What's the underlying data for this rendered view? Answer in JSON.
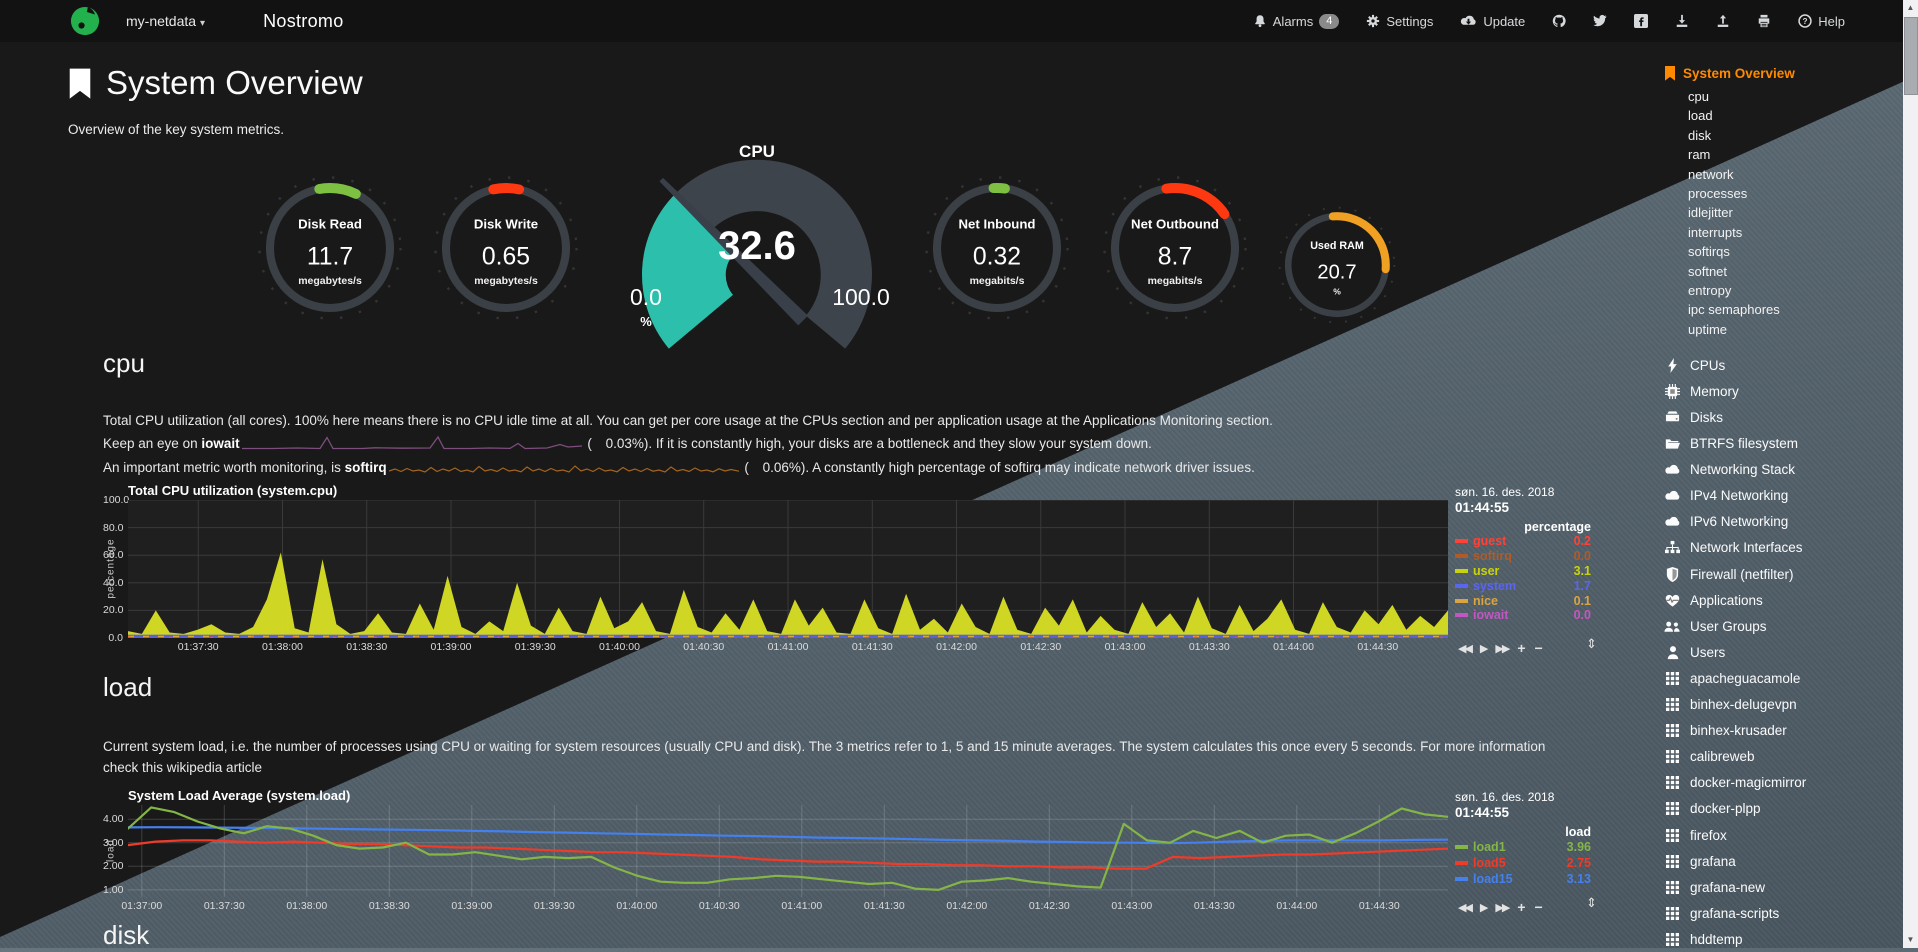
{
  "navbar": {
    "hostname": "my-netdata",
    "caret": "▾",
    "brand": "Nostromo",
    "items": [
      {
        "name": "alarms",
        "label": "Alarms",
        "icon": "bell",
        "badge": "4"
      },
      {
        "name": "settings",
        "label": "Settings",
        "icon": "gear"
      },
      {
        "name": "update",
        "label": "Update",
        "icon": "cloud-down"
      },
      {
        "name": "github",
        "icon": "github"
      },
      {
        "name": "twitter",
        "icon": "twitter"
      },
      {
        "name": "facebook",
        "icon": "facebook"
      },
      {
        "name": "export",
        "icon": "download"
      },
      {
        "name": "import",
        "icon": "upload"
      },
      {
        "name": "print",
        "icon": "printer"
      },
      {
        "name": "help",
        "label": "Help",
        "icon": "question"
      }
    ]
  },
  "header": {
    "title": "System Overview",
    "subtitle": "Overview of the key system metrics."
  },
  "gauges": [
    {
      "title": "Disk Read",
      "value": "11.7",
      "units": "megabytes/s",
      "color": "#7EC142",
      "arc_start": -10,
      "arc_sweep": 36
    },
    {
      "title": "Disk Write",
      "value": "0.65",
      "units": "megabytes/s",
      "color": "#FE3912",
      "arc_start": -12,
      "arc_sweep": 25
    },
    {
      "title": "Net Inbound",
      "value": "0.32",
      "units": "megabits/s",
      "color": "#7EC142",
      "arc_start": -3,
      "arc_sweep": 11
    },
    {
      "title": "Net Outbound",
      "value": "8.7",
      "units": "megabits/s",
      "color": "#FE3912",
      "arc_start": -8,
      "arc_sweep": 64
    },
    {
      "title": "Used RAM",
      "value": "20.7",
      "units": "%",
      "color": "#F0A023",
      "arc_start": -5,
      "arc_sweep": 100
    }
  ],
  "cpu_gauge": {
    "title": "CPU",
    "value": "32.6",
    "min": "0.0",
    "max": "100.0",
    "units": "%",
    "percent": 32.6,
    "fill_color": "#2CBFAC",
    "track_color": "#3E444B",
    "needle_color": "#39404A"
  },
  "cpu_section": {
    "heading": "cpu",
    "p1": "Total CPU utilization (all cores). 100% here means there is no CPU idle time at all. You can get per core usage at the CPUs section and per application usage at the Applications Monitoring section.",
    "p2": {
      "pre": "Keep an eye on ",
      "bold": "iowait",
      "open": " (",
      "value": "0.03%",
      "post": "). If it is constantly high, your disks are a bottleneck and they slow your system down."
    },
    "p3": {
      "pre": "An important metric worth monitoring, is ",
      "bold": "softirq",
      "open": " (",
      "value": "0.06%",
      "post": "). A constantly high percentage of softirq may indicate network driver issues."
    }
  },
  "load_section": {
    "heading": "load",
    "desc": "Current system load, i.e. the number of processes using CPU or waiting for system resources (usually CPU and disk). The 3 metrics refer to 1, 5 and 15 minute averages. The system calculates this once every 5 seconds. For more information check this wikipedia article"
  },
  "disk_section": {
    "heading": "disk"
  },
  "toolbar": {
    "buttons": [
      {
        "name": "pan-backward",
        "glyph": "◀◀"
      },
      {
        "name": "play",
        "glyph": "▶"
      },
      {
        "name": "pan-forward",
        "glyph": "▶▶"
      },
      {
        "name": "zoom-in",
        "glyph": "+"
      },
      {
        "name": "zoom-out",
        "glyph": "−"
      }
    ],
    "resize_glyph": "⇕"
  },
  "chart_data": [
    {
      "id": "cpu",
      "type": "area",
      "title": "Total CPU utilization (system.cpu)",
      "date": "søn. 16. des. 2018",
      "time": "01:44:55",
      "ylabel": "percentage",
      "legend_header": "percentage",
      "ylim": [
        0,
        100
      ],
      "yticks": [
        {
          "label": "100.0",
          "v": 100
        },
        {
          "label": "80.0",
          "v": 80
        },
        {
          "label": "60.0",
          "v": 60
        },
        {
          "label": "40.0",
          "v": 40
        },
        {
          "label": "20.0",
          "v": 20
        },
        {
          "label": "0.0",
          "v": 0
        }
      ],
      "xticks": [
        "01:37:30",
        "01:38:00",
        "01:38:30",
        "01:39:00",
        "01:39:30",
        "01:40:00",
        "01:40:30",
        "01:41:00",
        "01:41:30",
        "01:42:00",
        "01:42:30",
        "01:43:00",
        "01:43:30",
        "01:44:00",
        "01:44:30"
      ],
      "tick_start": 25,
      "tick_step": 30,
      "window": 470,
      "legend": [
        {
          "name": "guest",
          "value": "0.2",
          "color": "#FF4136"
        },
        {
          "name": "softirq",
          "value": "0.0",
          "color": "#B05B28"
        },
        {
          "name": "user",
          "value": "3.1",
          "color": "#C9D30A"
        },
        {
          "name": "system",
          "value": "1.7",
          "color": "#5A65F0"
        },
        {
          "name": "nice",
          "value": "0.1",
          "color": "#D9A441"
        },
        {
          "name": "iowait",
          "value": "0.0",
          "color": "#C257C2"
        }
      ],
      "series": [
        {
          "name": "user",
          "kind": "area",
          "color": "#D6DE23",
          "values": [
            5,
            3,
            20,
            4,
            3,
            6,
            10,
            4,
            3,
            8,
            28,
            62,
            7,
            4,
            57,
            10,
            3,
            5,
            18,
            4,
            3,
            25,
            6,
            45,
            8,
            3,
            12,
            5,
            40,
            9,
            3,
            22,
            5,
            3,
            30,
            7,
            12,
            26,
            5,
            3,
            35,
            8,
            4,
            18,
            6,
            28,
            5,
            3,
            28,
            9,
            22,
            4,
            3,
            28,
            7,
            3,
            32,
            6,
            14,
            4,
            25,
            8,
            3,
            30,
            6,
            3,
            22,
            9,
            28,
            4,
            16,
            6,
            3,
            26,
            8,
            18,
            4,
            30,
            7,
            3,
            24,
            5,
            14,
            28,
            6,
            3,
            26,
            8,
            4,
            20,
            10,
            24,
            6,
            16,
            8,
            20
          ]
        },
        {
          "name": "system",
          "kind": "band",
          "color": "#5156E8",
          "band": [
            0,
            2.4
          ]
        },
        {
          "name": "nice",
          "kind": "dashline",
          "color": "#D9A441",
          "level": 1.1,
          "dash": "6 9"
        },
        {
          "name": "guest",
          "kind": "dashline",
          "color": "#FF4136",
          "level": 0.5,
          "dash": "3 38"
        }
      ]
    },
    {
      "id": "load",
      "type": "line",
      "title": "System Load Average (system.load)",
      "date": "søn. 16. des. 2018",
      "time": "01:44:55",
      "ylabel": "load",
      "legend_header": "load",
      "ylim": [
        0.7,
        4.6
      ],
      "yticks": [
        {
          "label": "4.00",
          "v": 4
        },
        {
          "label": "3.00",
          "v": 3
        },
        {
          "label": "2.00",
          "v": 2
        },
        {
          "label": "1.00",
          "v": 1
        }
      ],
      "xticks": [
        "01:37:00",
        "01:37:30",
        "01:38:00",
        "01:38:30",
        "01:39:00",
        "01:39:30",
        "01:40:00",
        "01:40:30",
        "01:41:00",
        "01:41:30",
        "01:42:00",
        "01:42:30",
        "01:43:00",
        "01:43:30",
        "01:44:00",
        "01:44:30"
      ],
      "tick_start": 5,
      "tick_step": 30,
      "window": 480,
      "legend": [
        {
          "name": "load1",
          "value": "3.96",
          "color": "#84B547"
        },
        {
          "name": "load5",
          "value": "2.75",
          "color": "#EF3B28"
        },
        {
          "name": "load15",
          "value": "3.13",
          "color": "#4480EE"
        }
      ],
      "series": [
        {
          "name": "load15",
          "kind": "line",
          "color": "#4480EE",
          "values": [
            3.65,
            3.66,
            3.65,
            3.64,
            3.63,
            3.62,
            3.6,
            3.58,
            3.56,
            3.55,
            3.53,
            3.5,
            3.48,
            3.45,
            3.43,
            3.4,
            3.38,
            3.35,
            3.33,
            3.3,
            3.28,
            3.25,
            3.22,
            3.2,
            3.18,
            3.15,
            3.12,
            3.1,
            3.08,
            3.05,
            3.03,
            3.0,
            3.0,
            2.98,
            3.0,
            3.05,
            3.08,
            3.1,
            3.1,
            3.1,
            3.1,
            3.12,
            3.13
          ]
        },
        {
          "name": "load5",
          "kind": "line",
          "color": "#EF3B28",
          "values": [
            2.9,
            3.05,
            3.1,
            3.1,
            3.05,
            3.0,
            3.05,
            3.0,
            2.95,
            2.95,
            2.9,
            2.85,
            2.8,
            2.8,
            2.75,
            2.7,
            2.65,
            2.6,
            2.6,
            2.55,
            2.5,
            2.45,
            2.4,
            2.3,
            2.25,
            2.2,
            2.2,
            2.15,
            2.1,
            2.1,
            2.05,
            2.05,
            2.0,
            2.0,
            1.95,
            1.95,
            1.9,
            1.9,
            2.4,
            2.35,
            2.4,
            2.45,
            2.5,
            2.5,
            2.55,
            2.6,
            2.65,
            2.7,
            2.75
          ]
        },
        {
          "name": "load1",
          "kind": "line",
          "color": "#84B547",
          "values": [
            3.6,
            4.5,
            4.3,
            3.9,
            3.6,
            3.4,
            3.7,
            3.6,
            3.3,
            2.9,
            2.75,
            2.8,
            3.0,
            2.5,
            2.5,
            2.6,
            2.45,
            2.3,
            2.4,
            2.35,
            2.4,
            1.95,
            1.6,
            1.35,
            1.3,
            1.3,
            1.45,
            1.5,
            1.6,
            1.55,
            1.45,
            1.35,
            1.25,
            1.3,
            1.05,
            1.0,
            1.35,
            1.4,
            1.5,
            1.35,
            1.25,
            1.15,
            1.1,
            3.8,
            3.1,
            3.0,
            3.5,
            3.2,
            3.5,
            3.0,
            3.3,
            3.35,
            3.0,
            3.4,
            3.9,
            4.45,
            4.2,
            4.1
          ]
        }
      ]
    }
  ],
  "sidebar": {
    "active": {
      "label": "System Overview",
      "icon": "bookmark"
    },
    "sub_items": [
      "cpu",
      "load",
      "disk",
      "ram",
      "network",
      "processes",
      "idlejitter",
      "interrupts",
      "softirqs",
      "softnet",
      "entropy",
      "ipc semaphores",
      "uptime"
    ],
    "sections": [
      {
        "label": "CPUs",
        "icon": "bolt"
      },
      {
        "label": "Memory",
        "icon": "chip"
      },
      {
        "label": "Disks",
        "icon": "hdd"
      },
      {
        "label": "BTRFS filesystem",
        "icon": "folder"
      },
      {
        "label": "Networking Stack",
        "icon": "cloud"
      },
      {
        "label": "IPv4 Networking",
        "icon": "cloud"
      },
      {
        "label": "IPv6 Networking",
        "icon": "cloud"
      },
      {
        "label": "Network Interfaces",
        "icon": "sitemap"
      },
      {
        "label": "Firewall (netfilter)",
        "icon": "shield"
      },
      {
        "label": "Applications",
        "icon": "heartbeat"
      },
      {
        "label": "User Groups",
        "icon": "users"
      },
      {
        "label": "Users",
        "icon": "user"
      }
    ],
    "apps": [
      {
        "label": "apacheguacamole",
        "icon": "grid"
      },
      {
        "label": "binhex-delugevpn",
        "icon": "grid"
      },
      {
        "label": "binhex-krusader",
        "icon": "grid"
      },
      {
        "label": "calibreweb",
        "icon": "grid"
      },
      {
        "label": "docker-magicmirror",
        "icon": "grid"
      },
      {
        "label": "docker-plpp",
        "icon": "grid"
      },
      {
        "label": "firefox",
        "icon": "grid"
      },
      {
        "label": "grafana",
        "icon": "grid"
      },
      {
        "label": "grafana-new",
        "icon": "grid"
      },
      {
        "label": "grafana-scripts",
        "icon": "grid"
      },
      {
        "label": "hddtemp",
        "icon": "grid"
      }
    ]
  },
  "colors": {
    "accent_orange": "#FF8A00",
    "netdata_green": "#23B14D",
    "dark_bg": "#191919",
    "slate_bg": "#56646E"
  }
}
